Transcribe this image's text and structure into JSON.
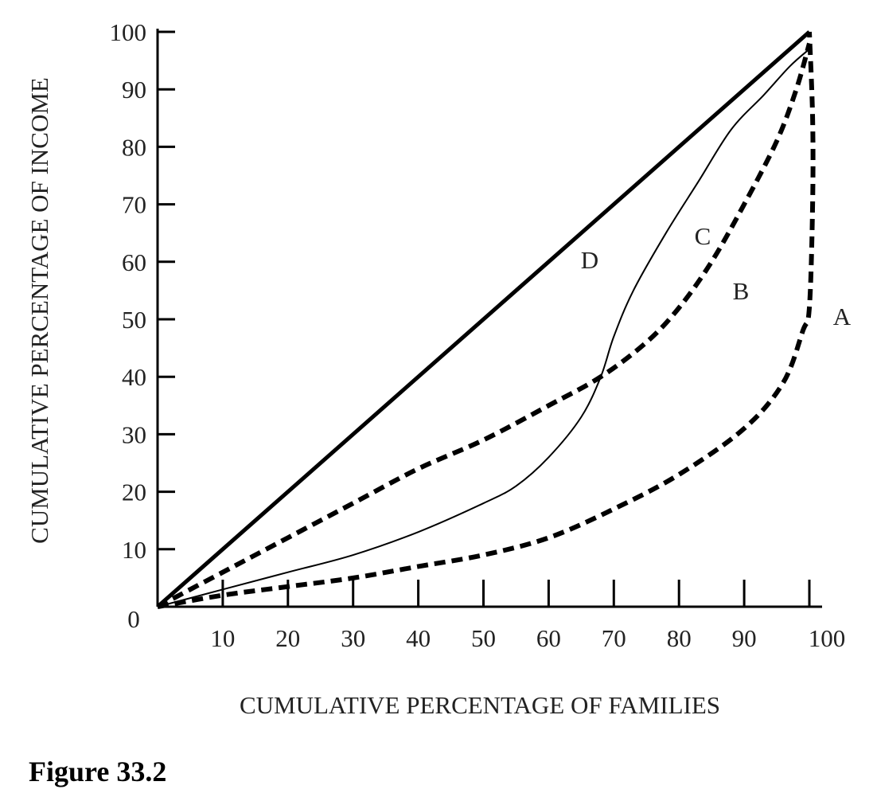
{
  "figure_caption": "Figure 33.2",
  "chart_data": {
    "type": "line",
    "xlabel": "CUMULATIVE PERCENTAGE OF FAMILIES",
    "ylabel": "CUMULATIVE PERCENTAGE OF INCOME",
    "xlim": [
      0,
      100
    ],
    "ylim": [
      0,
      100
    ],
    "origin_label": "0",
    "x_ticks": [
      10,
      20,
      30,
      40,
      50,
      60,
      70,
      80,
      90,
      100
    ],
    "y_ticks": [
      10,
      20,
      30,
      40,
      50,
      60,
      70,
      80,
      90,
      100
    ],
    "grid": false,
    "legend": "none",
    "series": [
      {
        "label": "D",
        "style": "solid-thick",
        "points": [
          [
            0,
            0
          ],
          [
            100,
            100
          ]
        ]
      },
      {
        "label": "C",
        "style": "solid-thin",
        "points": [
          [
            0,
            0
          ],
          [
            10,
            3
          ],
          [
            20,
            6
          ],
          [
            30,
            9
          ],
          [
            40,
            13
          ],
          [
            50,
            18
          ],
          [
            55,
            21
          ],
          [
            60,
            26
          ],
          [
            65,
            33
          ],
          [
            68,
            40
          ],
          [
            70,
            47
          ],
          [
            73,
            55
          ],
          [
            78,
            65
          ],
          [
            83,
            74
          ],
          [
            88,
            83
          ],
          [
            93,
            89
          ],
          [
            97,
            94
          ],
          [
            100,
            97
          ]
        ]
      },
      {
        "label": "B",
        "style": "dashed",
        "points": [
          [
            0,
            0
          ],
          [
            10,
            6
          ],
          [
            20,
            12
          ],
          [
            30,
            18
          ],
          [
            40,
            24
          ],
          [
            50,
            29
          ],
          [
            60,
            35
          ],
          [
            68,
            40
          ],
          [
            75,
            46
          ],
          [
            80,
            52
          ],
          [
            85,
            60
          ],
          [
            90,
            70
          ],
          [
            95,
            81
          ],
          [
            98,
            90
          ],
          [
            100,
            98
          ]
        ]
      },
      {
        "label": "A",
        "style": "dashed",
        "points": [
          [
            0,
            0
          ],
          [
            10,
            2
          ],
          [
            20,
            3.5
          ],
          [
            30,
            5
          ],
          [
            40,
            7
          ],
          [
            50,
            9
          ],
          [
            60,
            12
          ],
          [
            70,
            17
          ],
          [
            80,
            23
          ],
          [
            90,
            31
          ],
          [
            96,
            39
          ],
          [
            99,
            48
          ],
          [
            100,
            52
          ],
          [
            100.5,
            70
          ],
          [
            100.5,
            85
          ],
          [
            100,
            100
          ]
        ]
      }
    ]
  }
}
